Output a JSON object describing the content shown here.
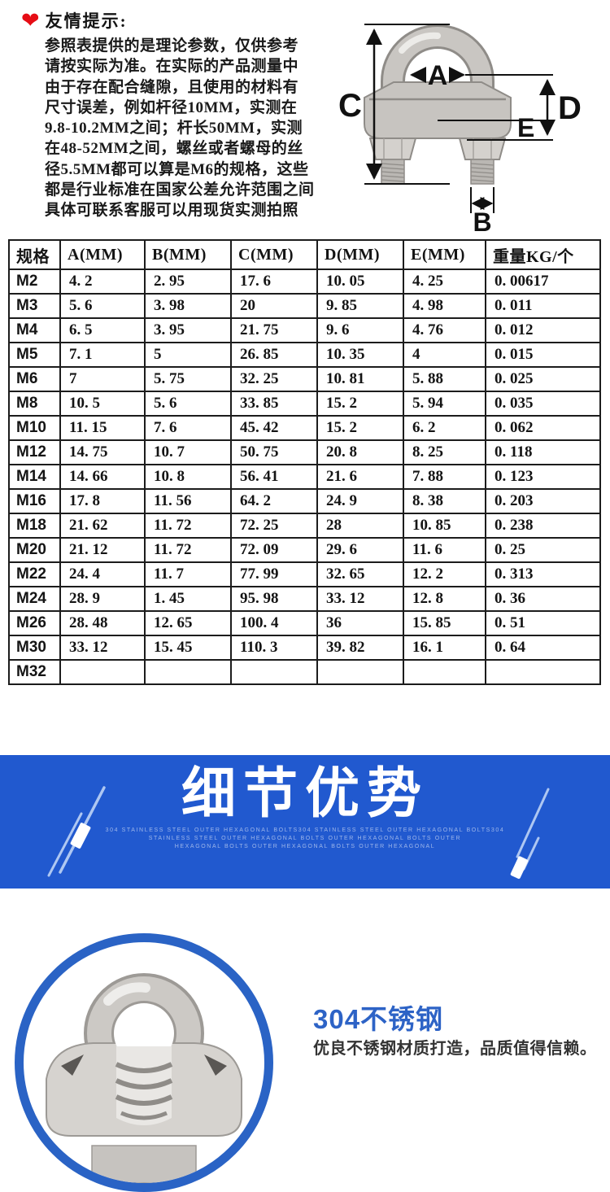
{
  "notice": {
    "heart_icon": "❤",
    "title": "友情提示:",
    "lines": [
      "参照表提供的是理论参数，仅供参考",
      "请按实际为准。在实际的产品测量中",
      "由于存在配合缝隙，且使用的材料有",
      "尺寸误差，例如杆径10MM，实测在",
      "9.8-10.2MM之间；杆长50MM，实测",
      "在48-52MM之间，螺丝或者螺母的丝",
      "径5.5MM都可以算是M6的规格，这些",
      "都是行业标准在国家公差允许范围之间",
      "具体可联系客服可以用现货实测拍照"
    ]
  },
  "diagram": {
    "dimension_labels": {
      "a": "A",
      "b": "B",
      "c": "C",
      "d": "D",
      "e": "E"
    }
  },
  "spec_table": {
    "headers": [
      "规格",
      "A(MM)",
      "B(MM)",
      "C(MM)",
      "D(MM)",
      "E(MM)",
      "重量KG/个"
    ],
    "rows": [
      [
        "M2",
        "4. 2",
        "2. 95",
        "17. 6",
        "10. 05",
        "4. 25",
        "0. 00617"
      ],
      [
        "M3",
        "5. 6",
        "3. 98",
        "20",
        "9. 85",
        "4. 98",
        "0. 011"
      ],
      [
        "M4",
        "6. 5",
        "3. 95",
        "21. 75",
        "9. 6",
        "4. 76",
        "0. 012"
      ],
      [
        "M5",
        "7. 1",
        "5",
        "26. 85",
        "10. 35",
        "4",
        "0. 015"
      ],
      [
        "M6",
        "7",
        "5. 75",
        "32. 25",
        "10. 81",
        "5. 88",
        "0. 025"
      ],
      [
        "M8",
        "10. 5",
        "5. 6",
        "33. 85",
        "15. 2",
        "5. 94",
        "0. 035"
      ],
      [
        "M10",
        "11. 15",
        "7. 6",
        "45. 42",
        "15. 2",
        "6. 2",
        "0. 062"
      ],
      [
        "M12",
        "14. 75",
        "10. 7",
        "50. 75",
        "20. 8",
        "8. 25",
        "0. 118"
      ],
      [
        "M14",
        "14. 66",
        "10. 8",
        "56. 41",
        "21. 6",
        "7. 88",
        "0. 123"
      ],
      [
        "M16",
        "17. 8",
        "11. 56",
        "64. 2",
        "24. 9",
        "8. 38",
        "0. 203"
      ],
      [
        "M18",
        "21. 62",
        "11. 72",
        "72. 25",
        "28",
        "10. 85",
        "0. 238"
      ],
      [
        "M20",
        "21. 12",
        "11. 72",
        "72. 09",
        "29. 6",
        "11. 6",
        "0. 25"
      ],
      [
        "M22",
        "24. 4",
        "11. 7",
        "77. 99",
        "32. 65",
        "12. 2",
        "0. 313"
      ],
      [
        "M24",
        "28. 9",
        "1. 45",
        "95. 98",
        "33. 12",
        "12. 8",
        "0. 36"
      ],
      [
        "M26",
        "28. 48",
        "12. 65",
        "100. 4",
        "36",
        "15. 85",
        "0. 51"
      ],
      [
        "M30",
        "33. 12",
        "15. 45",
        "110. 3",
        "39. 82",
        "16. 1",
        "0. 64"
      ],
      [
        "M32",
        "",
        "",
        "",
        "",
        "",
        ""
      ]
    ]
  },
  "banner": {
    "title": "细节优势",
    "bg_color": "#2159cf",
    "subtitle_lines": [
      "304 STAINLESS STEEL OUTER HEXAGONAL BOLTS304 STAINLESS STEEL OUTER HEXAGONAL BOLTS304",
      "STAINLESS STEEL OUTER HEXAGONAL BOLTS OUTER HEXAGONAL BOLTS OUTER",
      "HEXAGONAL BOLTS OUTER HEXAGONAL BOLTS OUTER HEXAGONAL"
    ]
  },
  "feature": {
    "heading": "304不锈钢",
    "heading_color": "#2d63c6",
    "description": "优良不锈钢材质打造，品质值得信赖。"
  }
}
